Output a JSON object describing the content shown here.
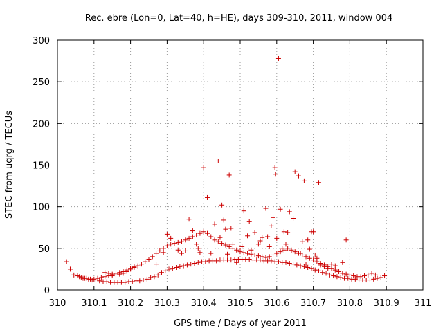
{
  "chart_data": {
    "type": "scatter",
    "title": "Rec. ebre (Lon=0, Lat=40, h=HE), days 309-310, 2011, window 004",
    "xlabel": "GPS time / Days of year 2011",
    "ylabel": "STEC from uqrg / TECUs",
    "xlim": [
      310,
      311
    ],
    "ylim": [
      0,
      300
    ],
    "xticks": [
      "310",
      "310.1",
      "310.2",
      "310.3",
      "310.4",
      "310.5",
      "310.6",
      "310.7",
      "310.8",
      "310.9",
      "311"
    ],
    "yticks": [
      "0",
      "50",
      "100",
      "150",
      "200",
      "250",
      "300"
    ],
    "xtick_values": [
      310,
      310.1,
      310.2,
      310.3,
      310.4,
      310.5,
      310.6,
      310.7,
      310.8,
      310.9,
      311
    ],
    "ytick_values": [
      0,
      50,
      100,
      150,
      200,
      250,
      300
    ],
    "grid": true,
    "marker": "+",
    "color": "#cc0000",
    "series": [
      {
        "points": [
          [
            310.025,
            34
          ],
          [
            310.035,
            25
          ],
          [
            310.045,
            18
          ],
          [
            310.055,
            17
          ],
          [
            310.065,
            15
          ],
          [
            310.075,
            14
          ],
          [
            310.085,
            13
          ],
          [
            310.095,
            12
          ],
          [
            310.105,
            12
          ],
          [
            310.115,
            11
          ],
          [
            310.125,
            10
          ],
          [
            310.135,
            10
          ],
          [
            310.145,
            9
          ],
          [
            310.155,
            9
          ],
          [
            310.165,
            9
          ],
          [
            310.175,
            9
          ],
          [
            310.185,
            9
          ],
          [
            310.195,
            10
          ],
          [
            310.205,
            10
          ],
          [
            310.215,
            11
          ],
          [
            310.225,
            11
          ],
          [
            310.235,
            12
          ],
          [
            310.245,
            13
          ],
          [
            310.255,
            15
          ],
          [
            310.265,
            16
          ],
          [
            310.275,
            18
          ],
          [
            310.285,
            21
          ],
          [
            310.295,
            23
          ],
          [
            310.305,
            25
          ],
          [
            310.315,
            26
          ],
          [
            310.325,
            27
          ],
          [
            310.335,
            28
          ],
          [
            310.345,
            29
          ],
          [
            310.355,
            30
          ],
          [
            310.365,
            31
          ],
          [
            310.375,
            32
          ],
          [
            310.385,
            33
          ],
          [
            310.395,
            34
          ],
          [
            310.405,
            34
          ],
          [
            310.415,
            35
          ],
          [
            310.425,
            35
          ],
          [
            310.435,
            35
          ],
          [
            310.445,
            36
          ],
          [
            310.455,
            36
          ],
          [
            310.465,
            36
          ],
          [
            310.475,
            36
          ],
          [
            310.485,
            37
          ],
          [
            310.495,
            37
          ],
          [
            310.505,
            37
          ],
          [
            310.515,
            37
          ],
          [
            310.525,
            37
          ],
          [
            310.535,
            36
          ],
          [
            310.545,
            36
          ],
          [
            310.555,
            36
          ],
          [
            310.565,
            35
          ],
          [
            310.575,
            35
          ],
          [
            310.585,
            35
          ],
          [
            310.595,
            34
          ],
          [
            310.605,
            34
          ],
          [
            310.615,
            33
          ],
          [
            310.625,
            33
          ],
          [
            310.635,
            32
          ],
          [
            310.645,
            31
          ],
          [
            310.655,
            30
          ],
          [
            310.665,
            29
          ],
          [
            310.675,
            28
          ],
          [
            310.685,
            27
          ],
          [
            310.695,
            26
          ],
          [
            310.705,
            24
          ],
          [
            310.715,
            23
          ],
          [
            310.725,
            21
          ],
          [
            310.735,
            20
          ],
          [
            310.745,
            18
          ],
          [
            310.755,
            17
          ],
          [
            310.765,
            16
          ],
          [
            310.775,
            15
          ],
          [
            310.785,
            14
          ],
          [
            310.795,
            14
          ],
          [
            310.805,
            13
          ],
          [
            310.815,
            13
          ],
          [
            310.825,
            12
          ],
          [
            310.835,
            12
          ],
          [
            310.845,
            12
          ],
          [
            310.855,
            12
          ],
          [
            310.865,
            13
          ],
          [
            310.875,
            14
          ],
          [
            310.885,
            15
          ],
          [
            310.895,
            17
          ],
          [
            310.06,
            16
          ],
          [
            310.07,
            14
          ],
          [
            310.08,
            14
          ],
          [
            310.09,
            13
          ],
          [
            310.1,
            13
          ],
          [
            310.11,
            14
          ],
          [
            310.12,
            15
          ],
          [
            310.13,
            16
          ],
          [
            310.14,
            17
          ],
          [
            310.15,
            17
          ],
          [
            310.16,
            18
          ],
          [
            310.17,
            19
          ],
          [
            310.18,
            20
          ],
          [
            310.19,
            22
          ],
          [
            310.2,
            25
          ],
          [
            310.21,
            27
          ],
          [
            310.22,
            29
          ],
          [
            310.23,
            31
          ],
          [
            310.24,
            34
          ],
          [
            310.25,
            37
          ],
          [
            310.26,
            40
          ],
          [
            310.27,
            44
          ],
          [
            310.28,
            47
          ],
          [
            310.29,
            50
          ],
          [
            310.3,
            53
          ],
          [
            310.31,
            55
          ],
          [
            310.32,
            56
          ],
          [
            310.33,
            57
          ],
          [
            310.34,
            58
          ],
          [
            310.35,
            60
          ],
          [
            310.36,
            62
          ],
          [
            310.37,
            64
          ],
          [
            310.38,
            66
          ],
          [
            310.39,
            68
          ],
          [
            310.4,
            70
          ],
          [
            310.41,
            68
          ],
          [
            310.42,
            64
          ],
          [
            310.43,
            60
          ],
          [
            310.44,
            58
          ],
          [
            310.45,
            56
          ],
          [
            310.46,
            54
          ],
          [
            310.47,
            52
          ],
          [
            310.48,
            50
          ],
          [
            310.49,
            48
          ],
          [
            310.5,
            46
          ],
          [
            310.51,
            45
          ],
          [
            310.52,
            44
          ],
          [
            310.53,
            43
          ],
          [
            310.54,
            42
          ],
          [
            310.55,
            41
          ],
          [
            310.56,
            40
          ],
          [
            310.57,
            39
          ],
          [
            310.58,
            40
          ],
          [
            310.59,
            42
          ],
          [
            310.6,
            44
          ],
          [
            310.61,
            46
          ],
          [
            310.62,
            48
          ],
          [
            310.63,
            50
          ],
          [
            310.64,
            48
          ],
          [
            310.65,
            46
          ],
          [
            310.66,
            44
          ],
          [
            310.67,
            42
          ],
          [
            310.68,
            40
          ],
          [
            310.69,
            38
          ],
          [
            310.7,
            36
          ],
          [
            310.71,
            34
          ],
          [
            310.72,
            32
          ],
          [
            310.73,
            30
          ],
          [
            310.74,
            28
          ],
          [
            310.75,
            26
          ],
          [
            310.76,
            24
          ],
          [
            310.77,
            22
          ],
          [
            310.78,
            20
          ],
          [
            310.79,
            19
          ],
          [
            310.8,
            18
          ],
          [
            310.81,
            17
          ],
          [
            310.82,
            16
          ],
          [
            310.83,
            16
          ],
          [
            310.84,
            17
          ],
          [
            310.85,
            18
          ],
          [
            310.86,
            20
          ],
          [
            310.87,
            18
          ],
          [
            310.13,
            21
          ],
          [
            310.14,
            20
          ],
          [
            310.15,
            19
          ],
          [
            310.16,
            20
          ],
          [
            310.17,
            21
          ],
          [
            310.18,
            22
          ],
          [
            310.19,
            24
          ],
          [
            310.2,
            26
          ],
          [
            310.21,
            28
          ],
          [
            310.27,
            31
          ],
          [
            310.29,
            45
          ],
          [
            310.3,
            67
          ],
          [
            310.31,
            62
          ],
          [
            310.33,
            48
          ],
          [
            310.34,
            44
          ],
          [
            310.35,
            47
          ],
          [
            310.36,
            85
          ],
          [
            310.37,
            71
          ],
          [
            310.38,
            55
          ],
          [
            310.385,
            50
          ],
          [
            310.39,
            45
          ],
          [
            310.4,
            147
          ],
          [
            310.41,
            111
          ],
          [
            310.42,
            44
          ],
          [
            310.43,
            79
          ],
          [
            310.44,
            155
          ],
          [
            310.445,
            63
          ],
          [
            310.45,
            102
          ],
          [
            310.455,
            84
          ],
          [
            310.46,
            73
          ],
          [
            310.465,
            43
          ],
          [
            310.47,
            138
          ],
          [
            310.475,
            74
          ],
          [
            310.48,
            55
          ],
          [
            310.49,
            33
          ],
          [
            310.5,
            47
          ],
          [
            310.505,
            52
          ],
          [
            310.51,
            95
          ],
          [
            310.52,
            65
          ],
          [
            310.525,
            82
          ],
          [
            310.53,
            48
          ],
          [
            310.54,
            69
          ],
          [
            310.55,
            55
          ],
          [
            310.555,
            59
          ],
          [
            310.56,
            63
          ],
          [
            310.57,
            98
          ],
          [
            310.575,
            64
          ],
          [
            310.58,
            52
          ],
          [
            310.585,
            77
          ],
          [
            310.59,
            87
          ],
          [
            310.595,
            147
          ],
          [
            310.597,
            139
          ],
          [
            310.6,
            62
          ],
          [
            310.605,
            278
          ],
          [
            310.61,
            97
          ],
          [
            310.615,
            50
          ],
          [
            310.62,
            70
          ],
          [
            310.625,
            55
          ],
          [
            310.63,
            69
          ],
          [
            310.635,
            94
          ],
          [
            310.64,
            47
          ],
          [
            310.645,
            86
          ],
          [
            310.65,
            142
          ],
          [
            310.66,
            137
          ],
          [
            310.665,
            44
          ],
          [
            310.67,
            58
          ],
          [
            310.675,
            131
          ],
          [
            310.68,
            31
          ],
          [
            310.685,
            60
          ],
          [
            310.69,
            49
          ],
          [
            310.695,
            70
          ],
          [
            310.7,
            70
          ],
          [
            310.705,
            42
          ],
          [
            310.71,
            38
          ],
          [
            310.715,
            129
          ],
          [
            310.72,
            30
          ],
          [
            310.73,
            28
          ],
          [
            310.74,
            26
          ],
          [
            310.75,
            31
          ],
          [
            310.76,
            29
          ],
          [
            310.78,
            33
          ],
          [
            310.79,
            60
          ]
        ]
      }
    ]
  }
}
